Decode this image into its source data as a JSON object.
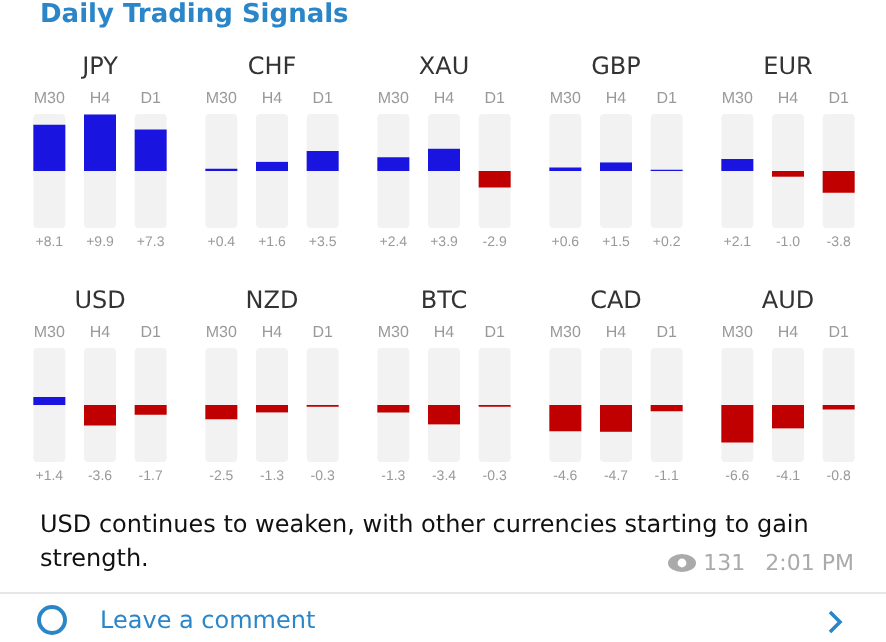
{
  "chart_data": [
    {
      "type": "bar",
      "title": "JPY",
      "categories": [
        "M30",
        "H4",
        "D1"
      ],
      "values": [
        8.1,
        9.9,
        7.3
      ],
      "value_labels": [
        "+8.1",
        "+9.9",
        "+7.3"
      ],
      "colors": [
        "#1a14e0",
        "#1a14e0",
        "#1a14e0"
      ],
      "ylim": [
        -10,
        10
      ],
      "tick_labels": "x"
    },
    {
      "type": "bar",
      "title": "CHF",
      "categories": [
        "M30",
        "H4",
        "D1"
      ],
      "values": [
        0.4,
        1.6,
        3.5
      ],
      "value_labels": [
        "+0.4",
        "+1.6",
        "+3.5"
      ],
      "colors": [
        "#1a14e0",
        "#1a14e0",
        "#1a14e0"
      ],
      "ylim": [
        -10,
        10
      ],
      "tick_labels": "x"
    },
    {
      "type": "bar",
      "title": "XAU",
      "categories": [
        "M30",
        "H4",
        "D1"
      ],
      "values": [
        2.4,
        3.9,
        -2.9
      ],
      "value_labels": [
        "+2.4",
        "+3.9",
        "-2.9"
      ],
      "colors": [
        "#1a14e0",
        "#1a14e0",
        "#c00000"
      ],
      "ylim": [
        -10,
        10
      ],
      "tick_labels": "x"
    },
    {
      "type": "bar",
      "title": "GBP",
      "categories": [
        "M30",
        "H4",
        "D1"
      ],
      "values": [
        0.6,
        1.5,
        0.2
      ],
      "value_labels": [
        "+0.6",
        "+1.5",
        "+0.2"
      ],
      "colors": [
        "#1a14e0",
        "#1a14e0",
        "#1a14e0"
      ],
      "ylim": [
        -10,
        10
      ],
      "tick_labels": "x"
    },
    {
      "type": "bar",
      "title": "EUR",
      "categories": [
        "M30",
        "H4",
        "D1"
      ],
      "values": [
        2.1,
        -1.0,
        -3.8
      ],
      "value_labels": [
        "+2.1",
        "-1.0",
        "-3.8"
      ],
      "colors": [
        "#1a14e0",
        "#c00000",
        "#c00000"
      ],
      "ylim": [
        -10,
        10
      ],
      "tick_labels": "x"
    },
    {
      "type": "bar",
      "title": "USD",
      "categories": [
        "M30",
        "H4",
        "D1"
      ],
      "values": [
        1.4,
        -3.6,
        -1.7
      ],
      "value_labels": [
        "+1.4",
        "-3.6",
        "-1.7"
      ],
      "colors": [
        "#1a14e0",
        "#c00000",
        "#c00000"
      ],
      "ylim": [
        -10,
        10
      ],
      "tick_labels": "x"
    },
    {
      "type": "bar",
      "title": "NZD",
      "categories": [
        "M30",
        "H4",
        "D1"
      ],
      "values": [
        -2.5,
        -1.3,
        -0.3
      ],
      "value_labels": [
        "-2.5",
        "-1.3",
        "-0.3"
      ],
      "colors": [
        "#c00000",
        "#c00000",
        "#c00000"
      ],
      "ylim": [
        -10,
        10
      ],
      "tick_labels": "x"
    },
    {
      "type": "bar",
      "title": "BTC",
      "categories": [
        "M30",
        "H4",
        "D1"
      ],
      "values": [
        -1.3,
        -3.4,
        -0.3
      ],
      "value_labels": [
        "-1.3",
        "-3.4",
        "-0.3"
      ],
      "colors": [
        "#c00000",
        "#c00000",
        "#c00000"
      ],
      "ylim": [
        -10,
        10
      ],
      "tick_labels": "x"
    },
    {
      "type": "bar",
      "title": "CAD",
      "categories": [
        "M30",
        "H4",
        "D1"
      ],
      "values": [
        -4.6,
        -4.7,
        -1.1
      ],
      "value_labels": [
        "-4.6",
        "-4.7",
        "-1.1"
      ],
      "colors": [
        "#c00000",
        "#c00000",
        "#c00000"
      ],
      "ylim": [
        -10,
        10
      ],
      "tick_labels": "x"
    },
    {
      "type": "bar",
      "title": "AUD",
      "categories": [
        "M30",
        "H4",
        "D1"
      ],
      "values": [
        -6.6,
        -4.1,
        -0.8
      ],
      "value_labels": [
        "-6.6",
        "-4.1",
        "-0.8"
      ],
      "colors": [
        "#c00000",
        "#c00000",
        "#c00000"
      ],
      "ylim": [
        -10,
        10
      ],
      "tick_labels": "x"
    },
    {
      "type": "other",
      "title": "Daily Trading Signals",
      "annotations": [
        "USD continues to weaken, with other currencies starting to gain strength.",
        "131",
        "2:01 PM",
        "Leave a comment"
      ]
    }
  ]
}
